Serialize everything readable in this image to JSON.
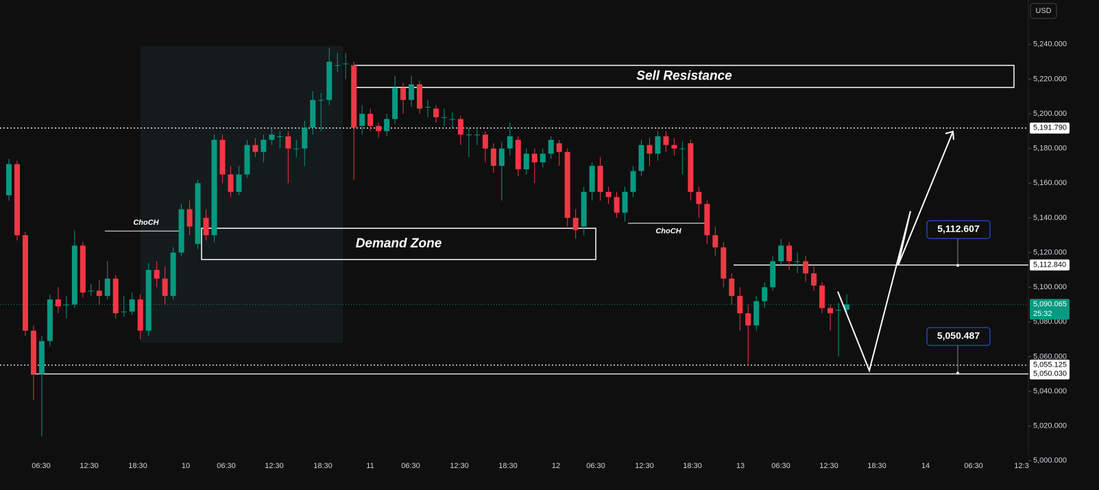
{
  "chart_data": {
    "type": "candlestick",
    "currency": "USD",
    "up_color": "#089981",
    "down_color": "#f23645",
    "open": [
      5153,
      5171,
      5130,
      5075,
      5050,
      5069,
      5093,
      5090,
      5090,
      5124,
      5098,
      5098,
      5095,
      5105,
      5086,
      5086,
      5093,
      5075,
      5110,
      5105,
      5095,
      5120,
      5145,
      5125,
      5140,
      5130,
      5185,
      5165,
      5155,
      5165,
      5182,
      5178,
      5185,
      5187,
      5187,
      5180,
      5180,
      5192,
      5208,
      5208,
      5228,
      5229,
      5228,
      5193,
      5200,
      5193,
      5190,
      5197,
      5215,
      5208,
      5217,
      5204,
      5203,
      5198,
      5197,
      5197,
      5188,
      5188,
      5188,
      5180,
      5170,
      5180,
      5185,
      5168,
      5177,
      5172,
      5177,
      5183,
      5178,
      5140,
      5135,
      5155,
      5170,
      5155,
      5152,
      5143,
      5155,
      5167,
      5182,
      5177,
      5187,
      5182,
      5180,
      5183,
      5155,
      5148,
      5130,
      5123,
      5105,
      5095,
      5085,
      5078,
      5092,
      5100,
      5115,
      5124,
      5115,
      5115,
      5108,
      5101,
      5088,
      5087,
      5087
    ],
    "high": [
      5174,
      5173,
      5132,
      5078,
      5072,
      5096,
      5100,
      5095,
      5133,
      5126,
      5102,
      5104,
      5115,
      5107,
      5095,
      5097,
      5096,
      5114,
      5115,
      5112,
      5123,
      5148,
      5150,
      5162,
      5145,
      5188,
      5188,
      5170,
      5170,
      5185,
      5186,
      5188,
      5192,
      5190,
      5190,
      5185,
      5196,
      5213,
      5212,
      5238,
      5235,
      5235,
      5230,
      5205,
      5203,
      5195,
      5200,
      5222,
      5218,
      5222,
      5219,
      5208,
      5205,
      5203,
      5201,
      5199,
      5192,
      5191,
      5190,
      5183,
      5184,
      5195,
      5187,
      5180,
      5180,
      5180,
      5187,
      5185,
      5180,
      5145,
      5158,
      5172,
      5175,
      5158,
      5155,
      5158,
      5170,
      5185,
      5186,
      5190,
      5190,
      5186,
      5184,
      5185,
      5158,
      5150,
      5135,
      5126,
      5108,
      5100,
      5090,
      5095,
      5103,
      5118,
      5128,
      5126,
      5120,
      5118,
      5112,
      5103,
      5090,
      5091,
      5096
    ],
    "low": [
      5150,
      5127,
      5072,
      5035,
      5014,
      5066,
      5085,
      5082,
      5088,
      5094,
      5095,
      5090,
      5093,
      5082,
      5083,
      5084,
      5070,
      5072,
      5100,
      5090,
      5093,
      5118,
      5130,
      5122,
      5127,
      5126,
      5160,
      5152,
      5153,
      5163,
      5175,
      5172,
      5182,
      5180,
      5160,
      5175,
      5170,
      5188,
      5190,
      5205,
      5224,
      5220,
      5162,
      5188,
      5190,
      5186,
      5187,
      5194,
      5200,
      5204,
      5200,
      5198,
      5195,
      5193,
      5192,
      5182,
      5175,
      5182,
      5172,
      5166,
      5150,
      5176,
      5164,
      5165,
      5160,
      5169,
      5174,
      5170,
      5135,
      5128,
      5130,
      5150,
      5150,
      5148,
      5140,
      5138,
      5152,
      5164,
      5170,
      5173,
      5178,
      5176,
      5165,
      5150,
      5140,
      5125,
      5118,
      5100,
      5090,
      5075,
      5055,
      5075,
      5088,
      5098,
      5112,
      5110,
      5108,
      5103,
      5098,
      5085,
      5075,
      5060,
      5084
    ],
    "close": [
      5171,
      5130,
      5075,
      5050,
      5069,
      5093,
      5089,
      5090,
      5124,
      5097,
      5098,
      5095,
      5105,
      5085,
      5086,
      5093,
      5075,
      5110,
      5105,
      5095,
      5120,
      5145,
      5135,
      5160,
      5130,
      5185,
      5165,
      5155,
      5165,
      5182,
      5178,
      5185,
      5188,
      5187,
      5180,
      5180,
      5192,
      5208,
      5208,
      5230,
      5228,
      5229,
      5192,
      5200,
      5193,
      5190,
      5197,
      5215,
      5208,
      5217,
      5203,
      5204,
      5198,
      5198,
      5197,
      5188,
      5188,
      5188,
      5180,
      5170,
      5180,
      5187,
      5168,
      5177,
      5172,
      5177,
      5185,
      5178,
      5140,
      5133,
      5155,
      5170,
      5155,
      5152,
      5143,
      5155,
      5167,
      5182,
      5177,
      5187,
      5182,
      5180,
      5180,
      5155,
      5148,
      5130,
      5123,
      5105,
      5095,
      5085,
      5078,
      5092,
      5100,
      5115,
      5124,
      5115,
      5115,
      5108,
      5101,
      5088,
      5085,
      5087,
      5090.065
    ],
    "ylim": [
      4993,
      5265.6
    ],
    "yticks": [
      {
        "value": 5000,
        "label": "5,000.000"
      },
      {
        "value": 5020,
        "label": "5,020.000"
      },
      {
        "value": 5040,
        "label": "5,040.000"
      },
      {
        "value": 5060,
        "label": "5,060.000"
      },
      {
        "value": 5080,
        "label": "5,080.000"
      },
      {
        "value": 5100,
        "label": "5,100.000"
      },
      {
        "value": 5120,
        "label": "5,120.000"
      },
      {
        "value": 5140,
        "label": "5,140.000"
      },
      {
        "value": 5160,
        "label": "5,160.000"
      },
      {
        "value": 5180,
        "label": "5,180.000"
      },
      {
        "value": 5200,
        "label": "5,200.000"
      },
      {
        "value": 5220,
        "label": "5,220.000"
      },
      {
        "value": 5240,
        "label": "5,240.000"
      }
    ],
    "xticks": [
      "06:30",
      "12:30",
      "18:30",
      "10",
      "06:30",
      "12:30",
      "18:30",
      "11",
      "06:30",
      "12:30",
      "18:30",
      "12",
      "06:30",
      "12:30",
      "18:30",
      "13",
      "06:30",
      "12:30",
      "18:30",
      "14",
      "06:30",
      "12:3"
    ],
    "levels": [
      {
        "value": 5191.79,
        "label": "5,191.790",
        "style": "dotted"
      },
      {
        "value": 5112.84,
        "label": "5,112.840",
        "style": "solid"
      },
      {
        "value": 5055.125,
        "label": "5,055.125",
        "style": "dotted"
      },
      {
        "value": 5050.03,
        "label": "5,050.030",
        "style": "solid"
      }
    ],
    "current": {
      "value": 5090.065,
      "label": "5,090.065",
      "countdown": "25:32"
    },
    "zones": [
      {
        "label": "Sell Resistance",
        "top": 5227.9,
        "bottom": 5215.2
      },
      {
        "label": "Demand Zone",
        "top": 5134,
        "bottom": 5116
      }
    ],
    "choch": [
      {
        "label": "ChoCH",
        "value": 5132.4
      },
      {
        "label": "ChoCH",
        "value": 5136.9
      }
    ],
    "callouts": [
      {
        "label": "5,112.607",
        "value": 5112.607
      },
      {
        "label": "5,050.487",
        "value": 5050.487
      }
    ],
    "projection": [
      5097.5,
      5052,
      5143.9,
      5112.7,
      5189.8
    ]
  }
}
